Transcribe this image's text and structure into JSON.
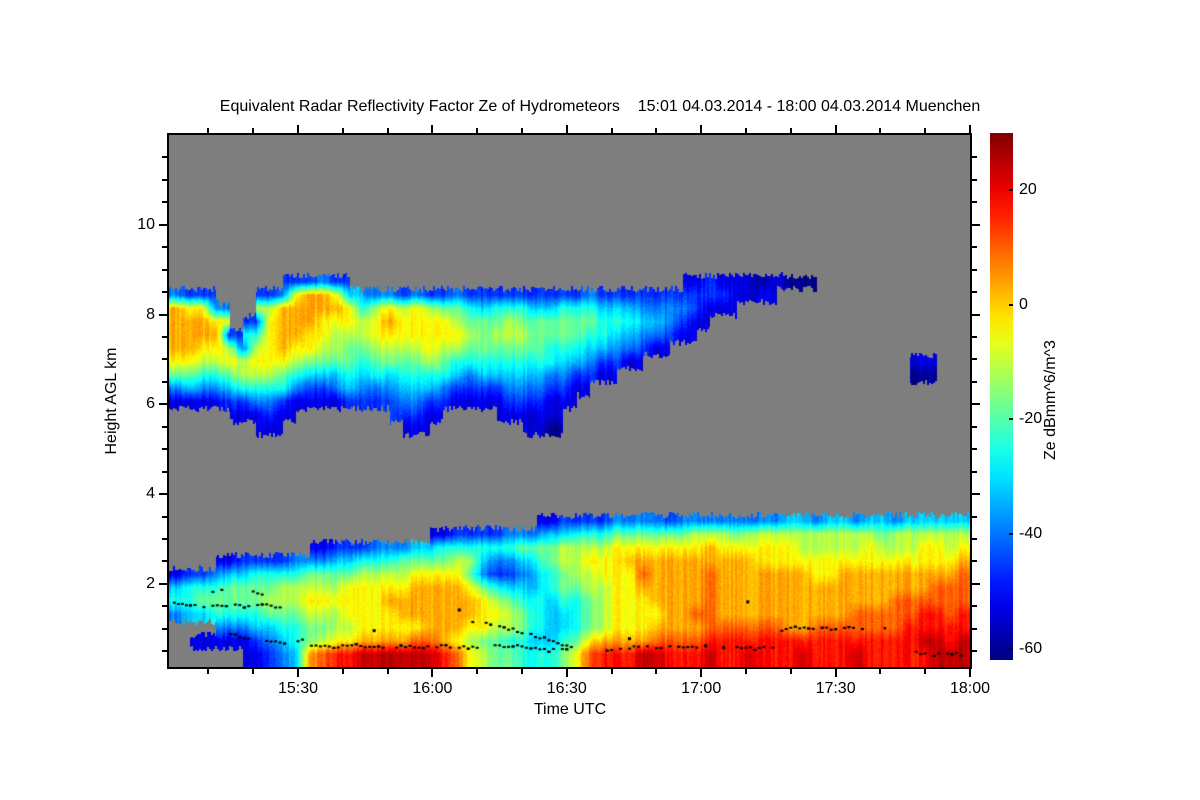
{
  "chart_data": {
    "type": "heatmap",
    "title": "Equivalent Radar Reflectivity Factor Ze of Hydrometeors    15:01 04.03.2014 - 18:00 04.03.2014 Muenchen",
    "xlabel": "Time UTC",
    "ylabel": "Height AGL km",
    "colorbar_label": "Ze dBmm^6/m^3",
    "time_start": "15:01",
    "time_end": "18:00",
    "date": "04.03.2014",
    "station": "Muenchen",
    "x_ticks": [
      {
        "label": "15:30",
        "min": 30
      },
      {
        "label": "16:00",
        "min": 60
      },
      {
        "label": "16:30",
        "min": 90
      },
      {
        "label": "17:00",
        "min": 120
      },
      {
        "label": "17:30",
        "min": 150
      },
      {
        "label": "18:00",
        "min": 180
      }
    ],
    "x_minor_step_min": 10,
    "y_ticks_km": [
      2,
      4,
      6,
      8,
      10
    ],
    "y_minor_step_km": 0.5,
    "ylim_km": [
      0.15,
      12.0
    ],
    "xlim_min": [
      1.2,
      180
    ],
    "colorbar_ticks": [
      20,
      0,
      -20,
      -40,
      -60
    ],
    "colorbar_range": [
      -62,
      30
    ],
    "colormap": "jet",
    "no_data_color": "#7e7e7e",
    "value_encoding": {
      "null_char": ".",
      "chars": "0123456789abc",
      "value_min_dB": -60,
      "value_step_dB": 7
    },
    "grid": {
      "n_cols": 60,
      "n_rows": 40,
      "t_start_min": 1.2,
      "t_end_min": 180,
      "h_top_km": 12.0,
      "h_bottom_km": 0.15,
      "upper_rows_start": 11,
      "upper": [
        ".399998631..",
        ".289998641..",
        ".289987531..",
        "..38987531..",
        "....278642..",
        ".....377521.",
        "...25787531.",
        ".27888875321",
        ".3999986521.",
        "2899987531..",
        "299988642...",
        "3998876421..",
        "2898776431..",
        ".488766542..",
        "..57765432..",
        ".378876532..",
        ".389876432..",
        ".2788765432.",
        ".38887654321",
        ".2788875421.",
        ".268876532..",
        ".367875421..",
        ".25676532...",
        "..46665421..",
        ".256765421..",
        ".2577654321.",
        ".2567654321.",
        ".24666543211",
        ".24665532110",
        ".256654321..",
        ".25665421...",
        ".3565432....",
        ".2455421....",
        ".245432.....",
        ".245431.....",
        ".23432......",
        ".23431......",
        ".2332.......",
        ".2321.......",
        "1221........",
        "221.........",
        "121.........",
        "11..........",
        "11..........",
        "01..........",
        "1...........",
        "0...........",
        "0...........",
        "............",
        "............",
        "............",
        "............",
        "............",
        "............",
        "............",
        "............",
        "......10....",
        "............",
        "............",
        "............"
      ],
      "lower_rows_start": 29,
      "lower": [
        "....1453...",
        "....2554...",
        "....2564.1.",
        "....3565...",
        "...1466531.",
        "...2466531.",
        "...25665421",
        "...25676432",
        "...25776543",
        "...35776554",
        "...36787669",
        "..13678767a",
        "..24678778b",
        "..24688878b",
        "..25788889c",
        "..35788889c",
        "..35789889c",
        "..36789989c",
        "..4689998ac",
        "..4689999ac",
        ".156899999b",
        ".257899998a",
        ".2576899878",
        ".2543688867",
        ".2532578766",
        ".3532467756",
        ".3643456655",
        ".3654455545",
        "14665544445",
        "24776654456",
        "25777655568",
        "2578776668a",
        "2578877779b",
        "3688888889b",
        "3689888889b",
        "3689a98889c",
        "368999989ac",
        "268999999ab",
        "368999999ab",
        "3789999a9ab",
        "3799aaaaabc",
        "37899999abb",
        "36899999abb",
        "37899999abc",
        "37889999abb",
        "37889999abb",
        "478899999bb",
        "477899999bc",
        "37788999abb",
        "47788999abb",
        "47789999abb",
        "3778999aabc",
        "4788999aabb",
        "4678999aabb",
        "377899aaabb",
        "477899aabbb",
        "478899abbcb",
        "47889aabbcc",
        "47789aaabbc",
        "4789aaabbcc"
      ]
    },
    "melting_layer_dots": {
      "color": "#000000",
      "segments": [
        [
          [
            1.5,
            1.57
          ],
          [
            6,
            1.54
          ],
          [
            10,
            1.5
          ],
          [
            14,
            1.53
          ],
          [
            18,
            1.5
          ],
          [
            22,
            1.52
          ],
          [
            26,
            1.5
          ]
        ],
        [
          [
            11,
            1.8
          ],
          [
            13,
            1.84
          ]
        ],
        [
          [
            20,
            1.82
          ],
          [
            22,
            1.76
          ]
        ],
        [
          [
            13,
            0.95
          ],
          [
            16,
            0.85
          ],
          [
            19,
            0.77
          ]
        ],
        [
          [
            23,
            0.74
          ],
          [
            27,
            0.7
          ],
          [
            31,
            0.73
          ]
        ],
        [
          [
            33,
            0.65
          ],
          [
            38,
            0.6
          ],
          [
            43,
            0.64
          ],
          [
            48,
            0.58
          ],
          [
            53,
            0.62
          ],
          [
            58,
            0.59
          ],
          [
            63,
            0.62
          ],
          [
            68,
            0.58
          ],
          [
            73,
            0.61
          ],
          [
            78,
            0.63
          ],
          [
            82,
            0.58
          ],
          [
            86,
            0.52
          ],
          [
            90,
            0.55
          ],
          [
            93,
            0.52
          ]
        ],
        [
          [
            69,
            1.17
          ],
          [
            73,
            1.1
          ],
          [
            76,
            1.03
          ],
          [
            79,
            0.96
          ],
          [
            82,
            0.88
          ],
          [
            85,
            0.78
          ],
          [
            88,
            0.68
          ],
          [
            91,
            0.6
          ]
        ],
        [
          [
            95,
            0.55
          ],
          [
            99,
            0.5
          ],
          [
            103,
            0.56
          ],
          [
            107,
            0.62
          ],
          [
            111,
            0.56
          ],
          [
            115,
            0.62
          ],
          [
            119,
            0.58
          ]
        ],
        [
          [
            128,
            0.6
          ],
          [
            132,
            0.55
          ],
          [
            136,
            0.58
          ]
        ],
        [
          [
            138,
            0.96
          ],
          [
            141,
            1.06
          ],
          [
            144,
            1.0
          ],
          [
            147,
            1.02
          ],
          [
            150,
            0.98
          ],
          [
            153,
            1.06
          ],
          [
            156,
            1.0
          ],
          [
            159,
            0.96
          ],
          [
            162,
            1.0
          ]
        ],
        [
          [
            168,
            0.46
          ],
          [
            172,
            0.42
          ],
          [
            176,
            0.46
          ],
          [
            178,
            0.43
          ]
        ]
      ],
      "points": [
        [
          104,
          0.78
        ],
        [
          130.4,
          1.6
        ],
        [
          66,
          1.42
        ],
        [
          47,
          0.96
        ],
        [
          121,
          0.62
        ],
        [
          125,
          0.58
        ]
      ]
    }
  }
}
